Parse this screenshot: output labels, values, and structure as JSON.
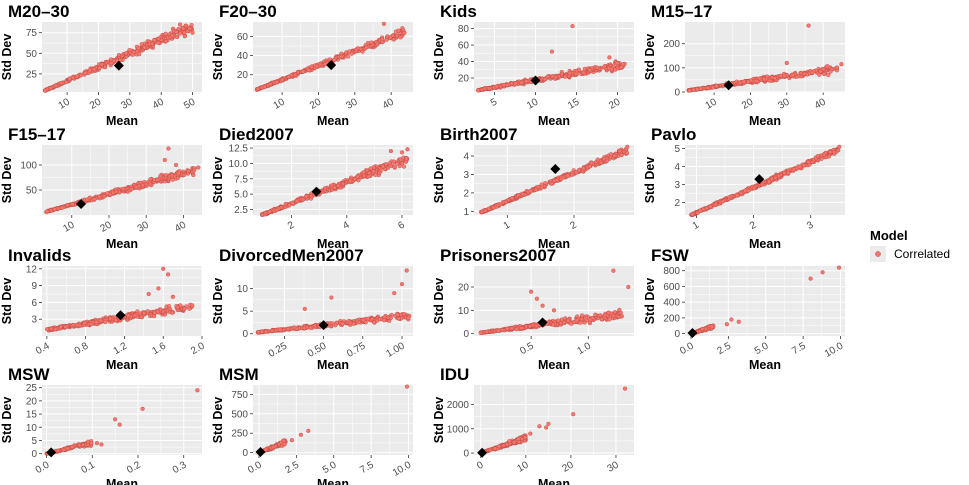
{
  "legend": {
    "title": "Model",
    "items": [
      "Correlated"
    ],
    "color": "#f8766d",
    "placement": "right"
  },
  "colors": {
    "panel_bg": "#ebebeb",
    "grid": "#ffffff",
    "point": "#f8766d",
    "highlight": "#000000"
  },
  "chart_data": [
    {
      "type": "scatter",
      "title": "M20–30",
      "xlabel": "Mean",
      "ylabel": "Std Dev",
      "xlim": [
        2,
        53
      ],
      "ylim": [
        3,
        88
      ],
      "xticks": [
        "10",
        "20",
        "30",
        "40",
        "50"
      ],
      "yticks": [
        "25",
        "50",
        "75"
      ],
      "trend": {
        "x0": 3,
        "x1": 50,
        "s": 1.65,
        "spread": 0.12,
        "n": 320
      },
      "outliers": [
        [
          46,
          85
        ],
        [
          50,
          75
        ]
      ],
      "highlight": [
        26.5,
        35
      ]
    },
    {
      "type": "scatter",
      "title": "F20–30",
      "xlabel": "Mean",
      "ylabel": "Std Dev",
      "xlim": [
        2,
        46
      ],
      "ylim": [
        2,
        75
      ],
      "xticks": [
        "10",
        "20",
        "30",
        "40"
      ],
      "yticks": [
        "20",
        "40",
        "60"
      ],
      "trend": {
        "x0": 3,
        "x1": 44,
        "s": 1.48,
        "spread": 0.1,
        "n": 320
      },
      "outliers": [
        [
          38,
          73
        ],
        [
          42,
          66
        ]
      ],
      "highlight": [
        23.5,
        30
      ]
    },
    {
      "type": "scatter",
      "title": "Kids",
      "xlabel": "Mean",
      "ylabel": "Std Dev",
      "xlim": [
        2.5,
        22
      ],
      "ylim": [
        3,
        88
      ],
      "xticks": [
        "5",
        "10",
        "15",
        "20"
      ],
      "yticks": [
        "20",
        "40",
        "60",
        "80"
      ],
      "trend": {
        "x0": 3,
        "x1": 21,
        "s": 1.75,
        "spread": 0.2,
        "n": 300
      },
      "outliers": [
        [
          14.5,
          83
        ],
        [
          19,
          45
        ],
        [
          20,
          38
        ],
        [
          12,
          52
        ]
      ],
      "highlight": [
        10,
        17
      ]
    },
    {
      "type": "scatter",
      "title": "M15–17",
      "xlabel": "Mean",
      "ylabel": "Std Dev",
      "xlim": [
        2,
        46
      ],
      "ylim": [
        0,
        290
      ],
      "xticks": [
        "10",
        "20",
        "30",
        "40"
      ],
      "yticks": [
        "0",
        "100",
        "200"
      ],
      "trend": {
        "x0": 3,
        "x1": 44,
        "s": 2.2,
        "spread": 0.25,
        "n": 300
      },
      "outliers": [
        [
          36,
          275
        ],
        [
          45,
          115
        ],
        [
          40,
          95
        ],
        [
          30,
          120
        ]
      ],
      "highlight": [
        14,
        28
      ]
    },
    {
      "type": "scatter",
      "title": "F15–17",
      "xlabel": "Mean",
      "ylabel": "Std Dev",
      "xlim": [
        2,
        45
      ],
      "ylim": [
        0,
        140
      ],
      "xticks": [
        "10",
        "20",
        "30",
        "40"
      ],
      "yticks": [
        "50",
        "100"
      ],
      "trend": {
        "x0": 3,
        "x1": 43,
        "s": 2.1,
        "spread": 0.15,
        "n": 300
      },
      "outliers": [
        [
          36,
          133
        ],
        [
          44,
          95
        ],
        [
          35,
          110
        ],
        [
          38,
          100
        ]
      ],
      "highlight": [
        12.5,
        22
      ]
    },
    {
      "type": "scatter",
      "title": "Died2007",
      "xlabel": "Mean",
      "ylabel": "Std Dev",
      "xlim": [
        0.6,
        6.4
      ],
      "ylim": [
        1.6,
        13
      ],
      "xticks": [
        "2",
        "4",
        "6"
      ],
      "yticks": [
        "2.5",
        "5.0",
        "7.5",
        "10.0",
        "12.5"
      ],
      "trend": {
        "x0": 0.8,
        "x1": 6.2,
        "s": 1.75,
        "spread": 0.12,
        "n": 320
      },
      "outliers": [
        [
          6.2,
          12.3
        ],
        [
          5.6,
          12
        ],
        [
          6,
          11.8
        ]
      ],
      "highlight": [
        2.9,
        5.4
      ]
    },
    {
      "type": "scatter",
      "title": "Birth2007",
      "xlabel": "Mean",
      "ylabel": "Std Dev",
      "xlim": [
        0.5,
        2.9
      ],
      "ylim": [
        0.8,
        4.6
      ],
      "xticks": [
        "1",
        "2"
      ],
      "yticks": [
        "1",
        "2",
        "3",
        "4"
      ],
      "trend": {
        "x0": 0.6,
        "x1": 2.8,
        "s": 1.55,
        "spread": 0.06,
        "n": 320
      },
      "outliers": [
        [
          2.8,
          4.5
        ]
      ],
      "highlight": [
        1.72,
        3.3
      ]
    },
    {
      "type": "scatter",
      "title": "Pavlo",
      "xlabel": "Mean",
      "ylabel": "Std Dev",
      "xlim": [
        0.8,
        3.6
      ],
      "ylim": [
        1.3,
        5.2
      ],
      "xticks": [
        "1",
        "2",
        "3"
      ],
      "yticks": [
        "2",
        "3",
        "4",
        "5"
      ],
      "trend": {
        "x0": 0.9,
        "x1": 3.5,
        "s": 1.42,
        "spread": 0.05,
        "n": 320
      },
      "outliers": [
        [
          3.5,
          5.1
        ]
      ],
      "highlight": [
        2.1,
        3.3
      ]
    },
    {
      "type": "scatter",
      "title": "Invalids",
      "xlabel": "Mean",
      "ylabel": "Std Dev",
      "xlim": [
        0.35,
        2.0
      ],
      "ylim": [
        0,
        12.5
      ],
      "xticks": [
        "0.4",
        "0.8",
        "1.2",
        "1.6",
        "2.0"
      ],
      "yticks": [
        "3",
        "6",
        "9",
        "12"
      ],
      "trend": {
        "x0": 0.4,
        "x1": 1.9,
        "s": 2.8,
        "spread": 0.22,
        "n": 300
      },
      "outliers": [
        [
          1.6,
          12
        ],
        [
          1.65,
          11
        ],
        [
          1.55,
          8.5
        ],
        [
          1.7,
          7
        ],
        [
          1.45,
          7.5
        ]
      ],
      "highlight": [
        1.16,
        3.7
      ]
    },
    {
      "type": "scatter",
      "title": "DivorcedMen2007",
      "xlabel": "Mean",
      "ylabel": "Std Dev",
      "xlim": [
        0.05,
        1.07
      ],
      "ylim": [
        -0.5,
        15
      ],
      "xticks": [
        "0.25",
        "0.50",
        "0.75",
        "1.00"
      ],
      "yticks": [
        "0",
        "5",
        "10"
      ],
      "trend": {
        "x0": 0.08,
        "x1": 1.05,
        "s": 3.8,
        "spread": 0.3,
        "n": 300
      },
      "outliers": [
        [
          1.03,
          14
        ],
        [
          1.0,
          11
        ],
        [
          0.95,
          9
        ],
        [
          0.38,
          5.5
        ],
        [
          0.55,
          8
        ]
      ],
      "highlight": [
        0.5,
        1.9
      ]
    },
    {
      "type": "scatter",
      "title": "Prisoners2007",
      "xlabel": "Mean",
      "ylabel": "Std Dev",
      "xlim": [
        0.0,
        1.4
      ],
      "ylim": [
        -1,
        29
      ],
      "xticks": [
        "0.5",
        "1.0"
      ],
      "yticks": [
        "0",
        "10",
        "20"
      ],
      "trend": {
        "x0": 0.05,
        "x1": 1.3,
        "s": 6.5,
        "spread": 0.35,
        "n": 300
      },
      "outliers": [
        [
          1.22,
          27
        ],
        [
          1.35,
          20
        ],
        [
          0.55,
          15
        ],
        [
          0.6,
          12
        ],
        [
          0.5,
          18
        ],
        [
          0.7,
          10
        ]
      ],
      "highlight": [
        0.6,
        4.8
      ]
    },
    {
      "type": "scatter",
      "title": "FSW",
      "xlabel": "Mean",
      "ylabel": "Std Dev",
      "xlim": [
        -0.4,
        10.3
      ],
      "ylim": [
        -30,
        860
      ],
      "xticks": [
        "0.0",
        "2.5",
        "5.0",
        "7.5",
        "10.0"
      ],
      "yticks": [
        "0",
        "200",
        "400",
        "600",
        "800"
      ],
      "trend": {
        "x0": 0.0,
        "x1": 1.5,
        "s": 60,
        "spread": 0.4,
        "n": 160
      },
      "outliers": [
        [
          9.9,
          840
        ],
        [
          8.8,
          780
        ],
        [
          8,
          700
        ],
        [
          3.2,
          150
        ],
        [
          2.7,
          180
        ],
        [
          2.4,
          120
        ]
      ],
      "highlight": [
        0.1,
        8
      ]
    },
    {
      "type": "scatter",
      "title": "MSW",
      "xlabel": "Mean",
      "ylabel": "Std Dev",
      "xlim": [
        -0.01,
        0.34
      ],
      "ylim": [
        -0.5,
        26
      ],
      "xticks": [
        "0.0",
        "0.1",
        "0.2",
        "0.3"
      ],
      "yticks": [
        "0",
        "5",
        "10",
        "15",
        "20",
        "25"
      ],
      "trend": {
        "x0": 0.0,
        "x1": 0.1,
        "s": 42,
        "spread": 0.35,
        "n": 110
      },
      "outliers": [
        [
          0.33,
          24
        ],
        [
          0.21,
          17
        ],
        [
          0.15,
          13
        ],
        [
          0.16,
          11
        ],
        [
          0.11,
          4
        ],
        [
          0.12,
          3.5
        ]
      ],
      "highlight": [
        0.01,
        0.5
      ]
    },
    {
      "type": "scatter",
      "title": "MSM",
      "xlabel": "Mean",
      "ylabel": "Std Dev",
      "xlim": [
        -0.4,
        10.3
      ],
      "ylim": [
        -30,
        870
      ],
      "xticks": [
        "0.0",
        "2.5",
        "5.0",
        "7.5",
        "10.0"
      ],
      "yticks": [
        "0",
        "250",
        "500",
        "750"
      ],
      "trend": {
        "x0": 0.0,
        "x1": 1.8,
        "s": 75,
        "spread": 0.35,
        "n": 140
      },
      "outliers": [
        [
          9.9,
          850
        ],
        [
          3.3,
          280
        ],
        [
          2.8,
          230
        ],
        [
          2.2,
          160
        ]
      ],
      "highlight": [
        0.1,
        8
      ]
    },
    {
      "type": "scatter",
      "title": "IDU",
      "xlabel": "Mean",
      "ylabel": "Std Dev",
      "xlim": [
        -1.5,
        34
      ],
      "ylim": [
        -80,
        2800
      ],
      "xticks": [
        "0",
        "10",
        "20",
        "30"
      ],
      "yticks": [
        "0",
        "1000",
        "2000"
      ],
      "trend": {
        "x0": 0.0,
        "x1": 10,
        "s": 62,
        "spread": 0.3,
        "n": 150
      },
      "outliers": [
        [
          32,
          2650
        ],
        [
          20.5,
          1600
        ],
        [
          13,
          1100
        ],
        [
          15,
          1200
        ],
        [
          14.5,
          1050
        ],
        [
          11,
          800
        ]
      ],
      "highlight": [
        0.3,
        12
      ]
    }
  ]
}
